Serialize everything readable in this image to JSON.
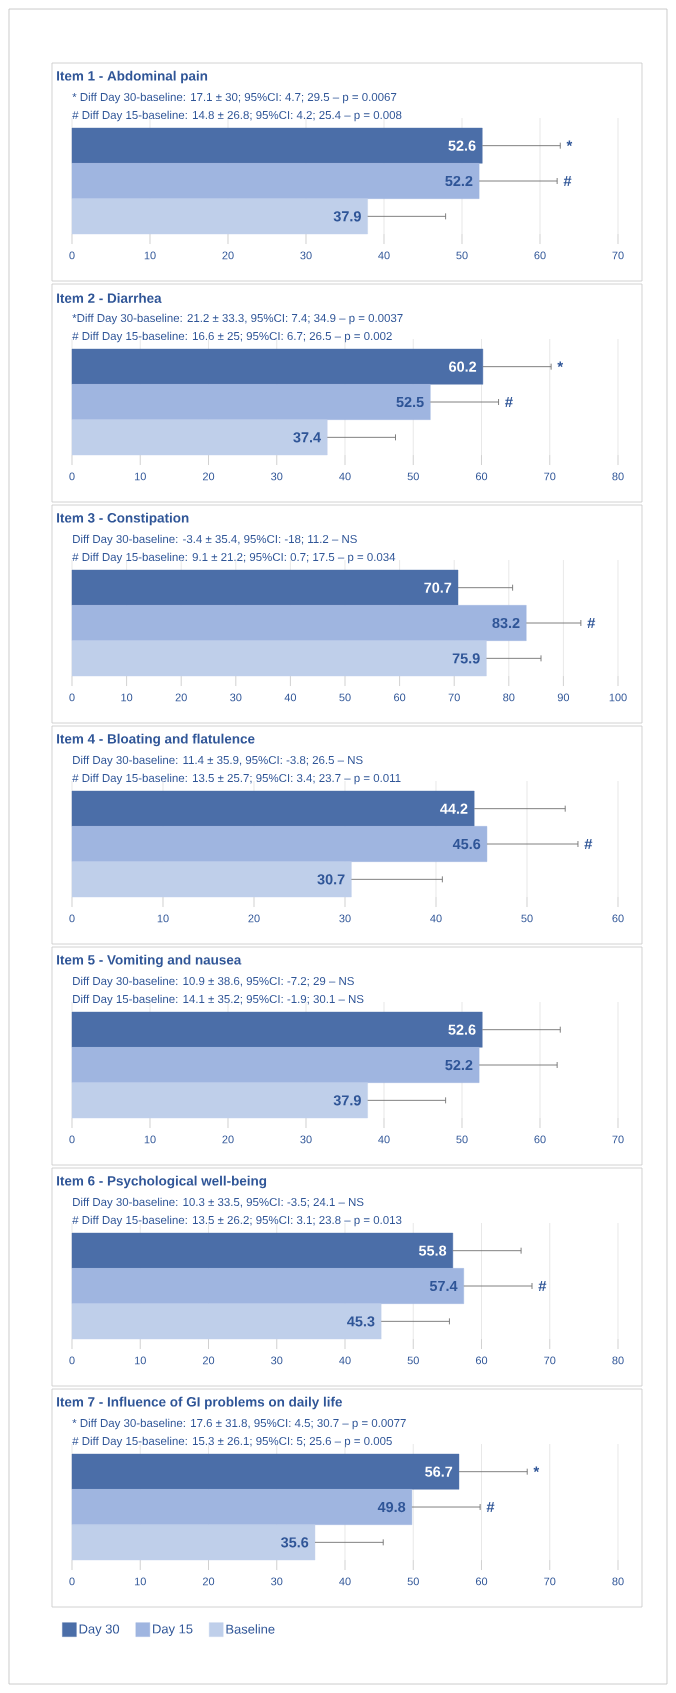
{
  "chart_data": [
    {
      "type": "bar",
      "orientation": "horizontal",
      "title": "Item 1 - Abdominal pain",
      "annotations": [
        "* Diff Day 30-baseline: 17.1 ± 30; 95%CI: 4.7; 29.5 – p = 0.0067",
        "# Diff Day 15-baseline: 14.8 ± 26.8; 95%CI: 4.2; 25.4 – p = 0.008",
        {
          "text": "*",
          "x": 62.6
        },
        {
          "text": "#",
          "x": 62.2
        }
      ],
      "categories": [
        null
      ],
      "series": [
        {
          "color": "#4b6ea8",
          "values": [
            52.6
          ],
          "errors": [
            [
              52.6,
              62.6
            ]
          ]
        },
        {
          "color": "#9fb5e0",
          "values": [
            52.2
          ],
          "errors": [
            [
              52.2,
              62.2
            ]
          ]
        },
        {
          "color": "#bfcfea",
          "values": [
            37.9
          ],
          "errors": [
            [
              37.9,
              47.9
            ]
          ]
        }
      ],
      "xlim": [
        0,
        70
      ],
      "xticks": [
        0,
        10,
        20,
        30,
        40,
        50,
        60,
        70
      ],
      "grid": "x",
      "data_labels": true
    },
    {
      "type": "bar",
      "orientation": "horizontal",
      "title": "Item 2 - Diarrhea",
      "annotations": [
        "*Diff Day 30-baseline: 21.2 ± 33.3, 95%CI: 7.4; 34.9 – p = 0.0037",
        "# Diff Day 15-baseline: 16.6 ± 25; 95%CI: 6.7; 26.5 – p = 0.002",
        {
          "text": "*",
          "x": 70.2
        },
        {
          "text": "#",
          "x": 62.5
        }
      ],
      "categories": [
        null
      ],
      "series": [
        {
          "color": "#4b6ea8",
          "values": [
            60.2
          ],
          "errors": [
            [
              60.2,
              70.2
            ]
          ]
        },
        {
          "color": "#9fb5e0",
          "values": [
            52.5
          ],
          "errors": [
            [
              52.5,
              62.5
            ]
          ]
        },
        {
          "color": "#bfcfea",
          "values": [
            37.4
          ],
          "errors": [
            [
              37.4,
              47.4
            ]
          ]
        }
      ],
      "xlim": [
        0,
        80
      ],
      "xticks": [
        0,
        10,
        20,
        30,
        40,
        50,
        60,
        70,
        80
      ],
      "grid": "x",
      "data_labels": true
    },
    {
      "type": "bar",
      "orientation": "horizontal",
      "title": "Item 3 - Constipation",
      "annotations": [
        "Diff Day 30-baseline: -3.4 ± 35.4, 95%CI: -18; 11.2 – NS",
        "# Diff Day 15-baseline: 9.1 ± 21.2; 95%CI: 0.7; 17.5 – p = 0.034",
        {
          "text": "#",
          "x": 93.2
        }
      ],
      "categories": [
        null
      ],
      "series": [
        {
          "color": "#4b6ea8",
          "values": [
            70.7
          ],
          "errors": [
            [
              70.7,
              80.7
            ]
          ]
        },
        {
          "color": "#9fb5e0",
          "values": [
            83.2
          ],
          "errors": [
            [
              83.2,
              93.2
            ]
          ]
        },
        {
          "color": "#bfcfea",
          "values": [
            75.9
          ],
          "errors": [
            [
              75.9,
              85.9
            ]
          ]
        }
      ],
      "xlim": [
        0,
        100
      ],
      "xticks": [
        0,
        10,
        20,
        30,
        40,
        50,
        60,
        70,
        80,
        90,
        100
      ],
      "grid": "x",
      "data_labels": true
    },
    {
      "type": "bar",
      "orientation": "horizontal",
      "title": "Item 4 - Bloating and flatulence",
      "annotations": [
        "Diff Day 30-baseline: 11.4 ± 35.9, 95%CI: -3.8; 26.5 – NS",
        "# Diff Day 15-baseline: 13.5 ± 25.7; 95%CI: 3.4; 23.7 – p = 0.011",
        {
          "text": "#",
          "x": 55.6
        }
      ],
      "categories": [
        null
      ],
      "series": [
        {
          "color": "#4b6ea8",
          "values": [
            44.2
          ],
          "errors": [
            [
              44.2,
              54.2
            ]
          ]
        },
        {
          "color": "#9fb5e0",
          "values": [
            45.6
          ],
          "errors": [
            [
              45.6,
              55.6
            ]
          ]
        },
        {
          "color": "#bfcfea",
          "values": [
            30.7
          ],
          "errors": [
            [
              30.7,
              40.7
            ]
          ]
        }
      ],
      "xlim": [
        0,
        60
      ],
      "xticks": [
        0,
        10,
        20,
        30,
        40,
        50,
        60
      ],
      "grid": "x",
      "data_labels": true
    },
    {
      "type": "bar",
      "orientation": "horizontal",
      "title": "Item 5 - Vomiting and nausea",
      "annotations": [
        "Diff Day 30-baseline: 10.9 ± 38.6, 95%CI: -7.2; 29 – NS",
        "Diff Day 15-baseline: 14.1 ± 35.2; 95%CI: -1.9; 30.1 – NS"
      ],
      "categories": [
        null
      ],
      "series": [
        {
          "color": "#4b6ea8",
          "values": [
            52.6
          ],
          "errors": [
            [
              52.6,
              62.6
            ]
          ]
        },
        {
          "color": "#9fb5e0",
          "values": [
            52.2
          ],
          "errors": [
            [
              52.2,
              62.2
            ]
          ]
        },
        {
          "color": "#bfcfea",
          "values": [
            37.9
          ],
          "errors": [
            [
              37.9,
              47.9
            ]
          ]
        }
      ],
      "xlim": [
        0,
        70
      ],
      "xticks": [
        0,
        10,
        20,
        30,
        40,
        50,
        60,
        70
      ],
      "grid": "x",
      "data_labels": true
    },
    {
      "type": "bar",
      "orientation": "horizontal",
      "title": "Item 6 - Psychological well-being",
      "annotations": [
        "Diff Day 30-baseline: 10.3 ± 33.5, 95%CI: -3.5; 24.1 – NS",
        "# Diff Day 15-baseline: 13.5 ± 26.2; 95%CI: 3.1; 23.8 – p = 0.013",
        {
          "text": "#",
          "x": 67.4
        }
      ],
      "categories": [
        null
      ],
      "series": [
        {
          "color": "#4b6ea8",
          "values": [
            55.8
          ],
          "errors": [
            [
              55.8,
              65.8
            ]
          ]
        },
        {
          "color": "#9fb5e0",
          "values": [
            57.4
          ],
          "errors": [
            [
              57.4,
              67.4
            ]
          ]
        },
        {
          "color": "#bfcfea",
          "values": [
            45.3
          ],
          "errors": [
            [
              45.3,
              55.3
            ]
          ]
        }
      ],
      "xlim": [
        0,
        80
      ],
      "xticks": [
        0,
        10,
        20,
        30,
        40,
        50,
        60,
        70,
        80
      ],
      "grid": "x",
      "data_labels": true
    },
    {
      "type": "bar",
      "orientation": "horizontal",
      "title": "Item 7 - Influence of GI problems on daily life",
      "annotations": [
        "* Diff Day 30-baseline: 17.6 ± 31.8, 95%CI: 4.5; 30.7 – p = 0.0077",
        "# Diff Day 15-baseline: 15.3 ± 26.1; 95%CI: 5; 25.6 – p = 0.005",
        {
          "text": "*",
          "x": 66.7
        },
        {
          "text": "#",
          "x": 59.8
        }
      ],
      "categories": [
        null
      ],
      "series": [
        {
          "name": "Day 30",
          "color": "#4b6ea8",
          "values": [
            56.7
          ],
          "errors": [
            [
              56.7,
              66.7
            ]
          ]
        },
        {
          "name": "Day 15",
          "color": "#9fb5e0",
          "values": [
            49.8
          ],
          "errors": [
            [
              49.8,
              59.8
            ]
          ]
        },
        {
          "name": "Baseline",
          "color": "#bfcfea",
          "values": [
            35.6
          ],
          "errors": [
            [
              35.6,
              45.6
            ]
          ]
        }
      ],
      "xlim": [
        0,
        80
      ],
      "xticks": [
        0,
        10,
        20,
        30,
        40,
        50,
        60,
        70,
        80
      ],
      "grid": "x",
      "legend": "bottom",
      "data_labels": true
    }
  ]
}
